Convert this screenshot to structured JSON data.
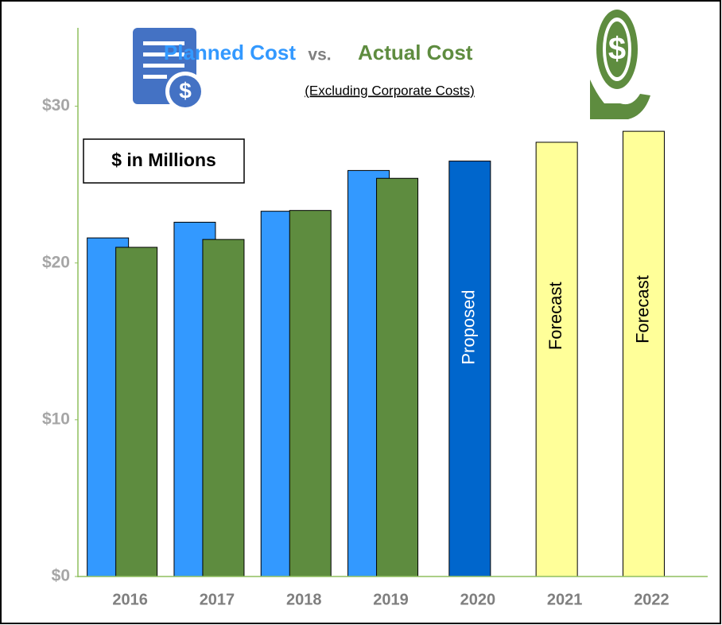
{
  "chart_data": {
    "type": "bar",
    "title_join": "vs.",
    "subtitle": "(Excluding Corporate Costs)",
    "annotation": "$ in Millions",
    "categories": [
      "2016",
      "2017",
      "2018",
      "2019",
      "2020",
      "2021",
      "2022"
    ],
    "series": [
      {
        "name": "Planned Cost",
        "color": "#3399ff",
        "values": [
          21.6,
          22.6,
          23.3,
          25.9,
          26.5,
          27.7,
          28.4
        ],
        "point_colors": [
          null,
          null,
          null,
          null,
          "#0066cc",
          "#ffff99",
          "#ffff99"
        ],
        "bar_labels": [
          null,
          null,
          null,
          null,
          "Proposed",
          "Forecast",
          "Forecast"
        ]
      },
      {
        "name": "Actual Cost",
        "color": "#5e8c3f",
        "values": [
          21.0,
          21.5,
          23.35,
          25.4,
          null,
          null,
          null
        ]
      }
    ],
    "ylim": [
      0,
      35
    ],
    "yticks": [
      {
        "value": 0,
        "label": "$0"
      },
      {
        "value": 10,
        "label": "$10"
      },
      {
        "value": 20,
        "label": "$20"
      },
      {
        "value": 30,
        "label": "$30"
      }
    ]
  }
}
